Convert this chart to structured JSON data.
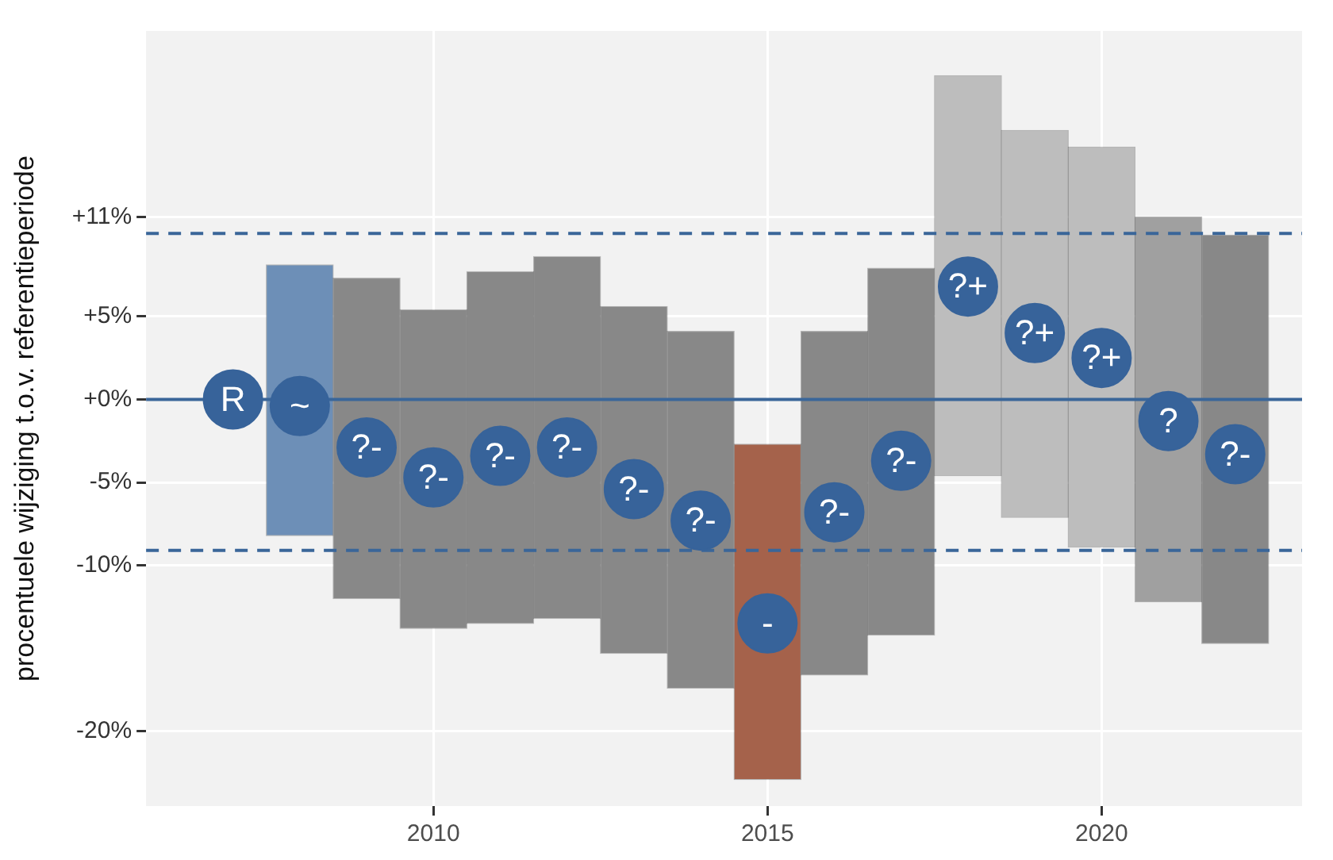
{
  "chart_data": {
    "type": "bar",
    "ylabel": "procentuele wijziging t.o.v. referentieperiode",
    "xlim": [
      2005.7,
      2023
    ],
    "xticks": [
      2010,
      2015,
      2020
    ],
    "ylim": [
      -24.5,
      22.2
    ],
    "yticks": [
      {
        "value": -20,
        "label": "-20%"
      },
      {
        "value": -10,
        "label": "-10%"
      },
      {
        "value": -5,
        "label": "-5%"
      },
      {
        "value": 0,
        "label": "+0%"
      },
      {
        "value": 5,
        "label": "+5%"
      },
      {
        "value": 11,
        "label": "+11%"
      }
    ],
    "grid": true,
    "legend": false,
    "series": [
      {
        "x": [
          2008,
          2009,
          2010,
          2011,
          2012,
          2013,
          2014,
          2015,
          2016,
          2017,
          2018,
          2019,
          2020,
          2021,
          2022
        ],
        "base": [
          -8.2,
          -12.0,
          -13.8,
          -13.5,
          -13.2,
          -15.3,
          -17.4,
          -22.9,
          -16.6,
          -14.2,
          -4.6,
          -7.1,
          -8.9,
          -12.2,
          -14.7
        ],
        "values": [
          16.3,
          19.3,
          19.2,
          21.2,
          21.8,
          20.9,
          21.5,
          20.2,
          20.7,
          22.1,
          24.1,
          23.3,
          24.1,
          23.2,
          24.6
        ],
        "colors": [
          "#6d8fb7",
          "#888888",
          "#888888",
          "#888888",
          "#888888",
          "#888888",
          "#888888",
          "#a5624b",
          "#888888",
          "#888888",
          "#bdbdbd",
          "#bdbdbd",
          "#bdbdbd",
          "#a0a0a0",
          "#888888"
        ]
      },
      {
        "type": "scatter",
        "color": "#37639a",
        "marker": "circle",
        "x": [
          2007,
          2008,
          2009,
          2010,
          2011,
          2012,
          2013,
          2014,
          2015,
          2016,
          2017,
          2018,
          2019,
          2020,
          2021,
          2022
        ],
        "values": [
          0,
          -0.4,
          -2.9,
          -4.7,
          -3.4,
          -2.9,
          -5.4,
          -7.3,
          -13.5,
          -6.8,
          -3.7,
          6.8,
          4.0,
          2.5,
          -1.3,
          -3.3
        ],
        "value_labels": [
          "R",
          "~",
          "?-",
          "?-",
          "?-",
          "?-",
          "?-",
          "?-",
          "-",
          "?-",
          "?-",
          "?+",
          "?+",
          "?+",
          "?",
          "?-"
        ]
      }
    ],
    "ref_lines": [
      {
        "axis": "y",
        "value": 0,
        "color": "#3a6699",
        "line_style": "solid"
      },
      {
        "axis": "y",
        "value": 10,
        "color": "#3a6699",
        "line_style": "dashed"
      },
      {
        "axis": "y",
        "value": -9.1,
        "color": "#3a6699",
        "line_style": "dashed"
      }
    ]
  }
}
